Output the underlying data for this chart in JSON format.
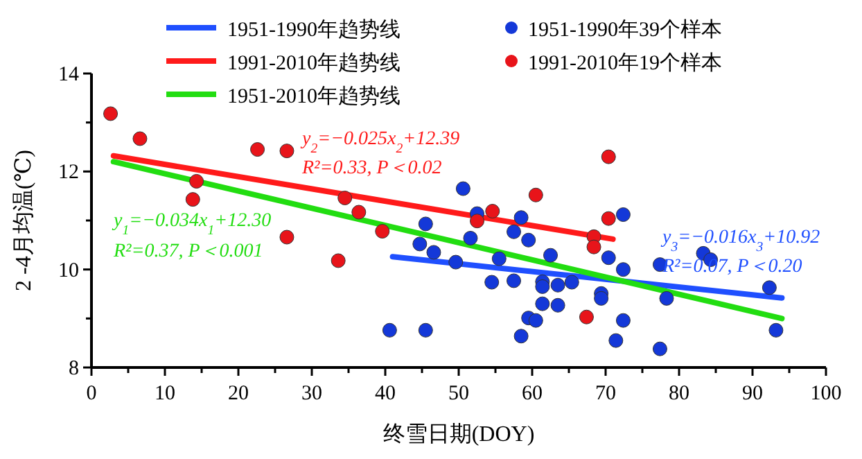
{
  "chart_data": {
    "type": "scatter",
    "xlabel": "终雪日期(DOY)",
    "ylabel": "2 -4月均温(℃)",
    "xlim": [
      0,
      100
    ],
    "ylim": [
      8,
      14
    ],
    "xticks": [
      0,
      {
        "value": 5,
        "label": null
      },
      10,
      {
        "value": 15,
        "label": null
      },
      20,
      {
        "value": 25,
        "label": null
      },
      30,
      {
        "value": 35,
        "label": null
      },
      40,
      {
        "value": 45,
        "label": null
      },
      50,
      {
        "value": 55,
        "label": null
      },
      60,
      {
        "value": 65,
        "label": null
      },
      70,
      {
        "value": 75,
        "label": null
      },
      80,
      {
        "value": 85,
        "label": null
      },
      90,
      {
        "value": 95,
        "label": null
      },
      100
    ],
    "yticks": [
      8,
      {
        "value": 9,
        "label": null
      },
      10,
      {
        "value": 11,
        "label": null
      },
      12,
      {
        "value": 13,
        "label": null
      },
      14
    ],
    "grid": false,
    "legend": "top",
    "series": [
      {
        "name": "1951-1990年趋势线",
        "type": "line",
        "color": "#1f4fff",
        "x": [
          41,
          94
        ],
        "values": [
          10.26,
          9.42
        ]
      },
      {
        "name": "1991-2010年趋势线",
        "type": "line",
        "color": "#ff1a1a",
        "x": [
          3,
          71
        ],
        "values": [
          12.32,
          10.62
        ]
      },
      {
        "name": "1951-2010年趋势线",
        "type": "line",
        "color": "#22dd11",
        "x": [
          3,
          94
        ],
        "values": [
          12.2,
          9.0
        ]
      },
      {
        "name": "1951-1990年39个样本",
        "marker": "circle",
        "color": "#1438d8",
        "x": [
          50.6,
          45.5,
          44.7,
          46.6,
          49.6,
          40.6,
          45.5,
          52.5,
          51.6,
          55.5,
          54.5,
          57.5,
          57.5,
          58.5,
          59.5,
          62.5,
          61.4,
          61.4,
          63.5,
          65.4,
          61.4,
          63.5,
          59.5,
          60.5,
          58.5,
          69.4,
          69.4,
          70.4,
          72.4,
          72.4,
          72.4,
          71.4,
          77.4,
          78.3,
          77.4,
          83.3,
          84.3,
          92.3,
          93.2
        ],
        "values": [
          11.65,
          10.93,
          10.52,
          10.35,
          10.15,
          8.76,
          8.76,
          11.14,
          10.64,
          10.22,
          9.74,
          9.77,
          10.77,
          11.06,
          10.6,
          10.29,
          9.75,
          9.65,
          9.68,
          9.74,
          9.3,
          9.27,
          9.01,
          8.96,
          8.64,
          9.51,
          9.41,
          10.24,
          11.12,
          10.0,
          8.96,
          8.55,
          10.1,
          9.41,
          8.38,
          10.33,
          10.2,
          9.63,
          8.76
        ]
      },
      {
        "name": "1991-2010年19个样本",
        "marker": "circle",
        "color": "#e8141a",
        "x": [
          2.6,
          6.6,
          14.3,
          13.8,
          22.6,
          26.6,
          26.6,
          33.6,
          34.5,
          36.4,
          39.6,
          70.4,
          60.5,
          54.6,
          52.5,
          70.4,
          68.4,
          68.4,
          67.4
        ],
        "values": [
          13.18,
          12.67,
          11.8,
          11.43,
          12.45,
          12.42,
          10.66,
          10.18,
          11.46,
          11.17,
          10.78,
          12.3,
          11.52,
          11.19,
          10.99,
          11.04,
          10.67,
          10.46,
          9.03
        ]
      }
    ],
    "annotations": [
      "y$_{2}$=−0.025x$_{2}$+12.39",
      "R²=0.33, P＜0.02",
      "y$_{1}$=−0.034x$_{1}$+12.30",
      "R²=0.37, P＜0.001",
      "y$_{3}$=−0.016x$_{3}$+10.92",
      "R²=0.07, P＜0.20"
    ]
  }
}
